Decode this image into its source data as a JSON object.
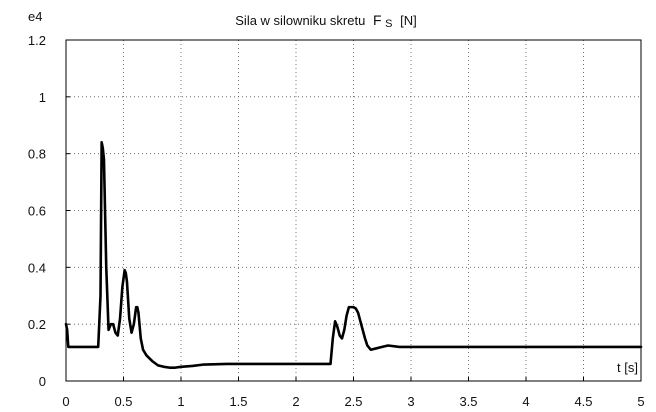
{
  "chart_data": {
    "type": "line",
    "title": "Sila w silowniku skretu",
    "title_symbol": "F",
    "title_subscript": "S",
    "title_unit": "[N]",
    "xlabel": "t [s]",
    "ylabel": "",
    "y_exponent_label": "e4",
    "xlim": [
      0,
      5
    ],
    "ylim": [
      0,
      1.2
    ],
    "x_ticks": [
      0,
      0.5,
      1,
      1.5,
      2,
      2.5,
      3,
      3.5,
      4,
      4.5,
      5
    ],
    "x_tick_labels": [
      "0",
      "0.5",
      "1",
      "1.5",
      "2",
      "2.5",
      "3",
      "3.5",
      "4",
      "4.5",
      "5"
    ],
    "y_ticks": [
      0,
      0.2,
      0.4,
      0.6,
      0.8,
      1,
      1.2
    ],
    "y_tick_labels": [
      "0",
      "0.2",
      "0.4",
      "0.6",
      "0.8",
      "1",
      "1.2"
    ],
    "grid": true,
    "grid_style": "dotted",
    "line_color": "#000000",
    "series": [
      {
        "x": [
          0,
          0.01,
          0.02,
          0.04,
          0.28,
          0.3,
          0.31,
          0.32,
          0.33,
          0.35,
          0.37,
          0.39,
          0.41,
          0.43,
          0.45,
          0.47,
          0.49,
          0.51,
          0.52,
          0.53,
          0.55,
          0.57,
          0.59,
          0.61,
          0.62,
          0.63,
          0.65,
          0.67,
          0.7,
          0.75,
          0.8,
          0.85,
          0.9,
          0.95,
          1.0,
          1.1,
          1.2,
          1.4,
          1.8,
          2.2,
          2.3,
          2.32,
          2.34,
          2.36,
          2.38,
          2.4,
          2.42,
          2.44,
          2.46,
          2.48,
          2.5,
          2.52,
          2.54,
          2.56,
          2.58,
          2.6,
          2.62,
          2.65,
          2.7,
          2.75,
          2.8,
          2.9,
          3.0,
          3.5,
          4.0,
          4.5,
          5.0
        ],
        "y": [
          0.2,
          0.18,
          0.12,
          0.12,
          0.12,
          0.3,
          0.84,
          0.82,
          0.78,
          0.4,
          0.18,
          0.2,
          0.2,
          0.17,
          0.16,
          0.22,
          0.33,
          0.39,
          0.38,
          0.35,
          0.22,
          0.17,
          0.2,
          0.26,
          0.26,
          0.24,
          0.15,
          0.11,
          0.09,
          0.07,
          0.055,
          0.05,
          0.047,
          0.047,
          0.05,
          0.053,
          0.058,
          0.06,
          0.06,
          0.06,
          0.06,
          0.15,
          0.21,
          0.19,
          0.16,
          0.15,
          0.18,
          0.23,
          0.26,
          0.26,
          0.26,
          0.255,
          0.24,
          0.21,
          0.18,
          0.15,
          0.125,
          0.11,
          0.115,
          0.12,
          0.125,
          0.12,
          0.12,
          0.12,
          0.12,
          0.12,
          0.12
        ]
      }
    ]
  }
}
